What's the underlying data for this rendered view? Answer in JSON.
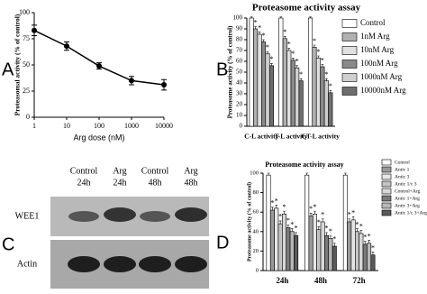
{
  "chart_data": [
    {
      "type": "line",
      "label": "A",
      "ylabel": "Proteasomal activity (% of control)",
      "xlabel": "Arg dose (nM)",
      "xscale": "log",
      "x": [
        1,
        10,
        100,
        1000,
        10000
      ],
      "values": [
        83,
        68,
        49,
        35,
        31
      ],
      "errors": [
        5,
        4,
        3,
        4,
        5
      ],
      "color": "#000000",
      "xlim": [
        1,
        10000
      ],
      "xticks": [
        1,
        10,
        100,
        1000,
        10000
      ],
      "ylim": [
        0,
        100
      ],
      "yticks": [
        0,
        25,
        50,
        75,
        100
      ]
    },
    {
      "type": "bar",
      "label": "B",
      "title": "Proteasome activity assay",
      "ylabel": "Proteasome activity (% of control)",
      "categories": [
        "C-L activity",
        "T-L activity",
        "CT-L activity"
      ],
      "ylim": [
        0,
        100
      ],
      "yticks": [
        0,
        10,
        20,
        30,
        40,
        50,
        60,
        70,
        80,
        90,
        100
      ],
      "series": [
        {
          "name": "Control",
          "color": "#ffffff",
          "values": [
            100,
            100,
            100
          ],
          "errors": [
            1,
            1,
            1
          ]
        },
        {
          "name": "1nM Arg",
          "color": "#b0b0b0",
          "values": [
            90,
            81,
            73
          ],
          "errors": [
            2,
            2,
            2
          ],
          "sig": "*"
        },
        {
          "name": "10nM Arg",
          "color": "#e0e0e0",
          "values": [
            85,
            70,
            63
          ],
          "errors": [
            2,
            2,
            2
          ],
          "sig": "*"
        },
        {
          "name": "100nM Arg",
          "color": "#8a8a8a",
          "values": [
            78,
            61,
            55
          ],
          "errors": [
            2,
            2,
            2
          ],
          "sig": "*"
        },
        {
          "name": "1000nM Arg",
          "color": "#cfcfcf",
          "values": [
            67,
            54,
            42
          ],
          "errors": [
            2,
            2,
            2
          ],
          "sig": "*"
        },
        {
          "name": "10000nM Arg",
          "color": "#6e6e6e",
          "values": [
            56,
            42,
            31
          ],
          "errors": [
            2,
            2,
            2
          ],
          "sig": "*"
        }
      ]
    },
    {
      "type": "bar",
      "label": "D",
      "title": "Proteasome activity assay",
      "ylabel": "Proteasome activity (% of control)",
      "categories": [
        "24h",
        "48h",
        "72h"
      ],
      "ylim": [
        0,
        100
      ],
      "yticks": [
        0,
        20,
        40,
        60,
        80,
        100
      ],
      "series": [
        {
          "name": "Control",
          "color": "#ffffff",
          "values": [
            98,
            98,
            98
          ],
          "errors": [
            2,
            2,
            2
          ]
        },
        {
          "name": "Antic 1",
          "color": "#9a9a9a",
          "values": [
            62,
            56,
            50
          ],
          "errors": [
            3,
            3,
            3
          ],
          "sig": "*"
        },
        {
          "name": "Antic 3",
          "color": "#e6e6e6",
          "values": [
            64,
            58,
            52
          ],
          "errors": [
            3,
            3,
            3
          ],
          "sig": "*"
        },
        {
          "name": "Antic 1/c 3",
          "color": "#c4c4c4",
          "values": [
            48,
            42,
            40
          ],
          "errors": [
            3,
            3,
            3
          ],
          "sig": "*"
        },
        {
          "name": "Control+Arg",
          "color": "#d8d8d8",
          "values": [
            58,
            50,
            38
          ],
          "errors": [
            3,
            3,
            3
          ],
          "sig": "*"
        },
        {
          "name": "Antic 1+Arg",
          "color": "#7a7a7a",
          "values": [
            44,
            36,
            27
          ],
          "errors": [
            3,
            3,
            3
          ],
          "sig": "*"
        },
        {
          "name": "Antic 3+Arg",
          "color": "#b8b8b8",
          "values": [
            40,
            33,
            28
          ],
          "errors": [
            3,
            3,
            3
          ],
          "sig": "*"
        },
        {
          "name": "Antic 1/c 3+Arg",
          "color": "#5a5a5a",
          "values": [
            36,
            25,
            16
          ],
          "errors": [
            3,
            3,
            3
          ],
          "sig": "*"
        }
      ]
    }
  ],
  "blot": {
    "label": "C",
    "lanes": [
      {
        "treatment": "Control",
        "time": "24h"
      },
      {
        "treatment": "Arg",
        "time": "24h"
      },
      {
        "treatment": "Control",
        "time": "48h"
      },
      {
        "treatment": "Arg",
        "time": "48h"
      }
    ],
    "rows": [
      "WEE1",
      "Actin"
    ]
  }
}
